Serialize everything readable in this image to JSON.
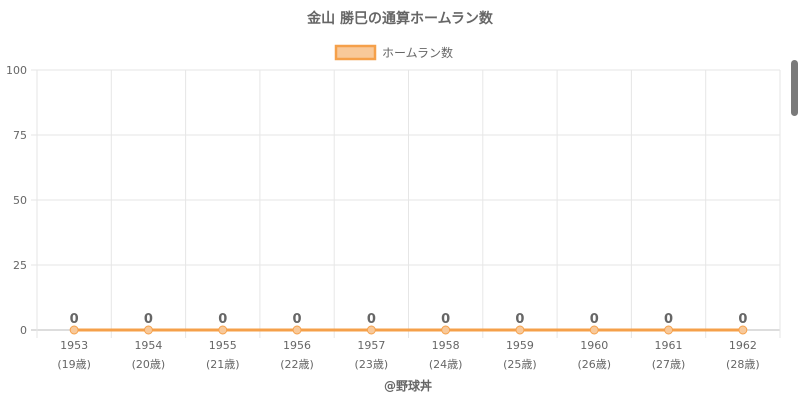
{
  "chart_data": {
    "type": "line",
    "title": "金山 勝巳の通算ホームラン数",
    "legend": {
      "label": "ホームラン数",
      "position": "top"
    },
    "categories": [
      "1953",
      "1954",
      "1955",
      "1956",
      "1957",
      "1958",
      "1959",
      "1960",
      "1961",
      "1962"
    ],
    "ages": [
      "(19歳)",
      "(20歳)",
      "(21歳)",
      "(22歳)",
      "(23歳)",
      "(24歳)",
      "(25歳)",
      "(26歳)",
      "(27歳)",
      "(28歳)"
    ],
    "series": [
      {
        "name": "ホームラン数",
        "values": [
          0,
          0,
          0,
          0,
          0,
          0,
          0,
          0,
          0,
          0
        ],
        "color": "#f5a04a"
      }
    ],
    "ylim": [
      0,
      100
    ],
    "yticks": [
      0,
      25,
      50,
      75,
      100
    ],
    "grid": true,
    "credit": "@野球丼"
  }
}
